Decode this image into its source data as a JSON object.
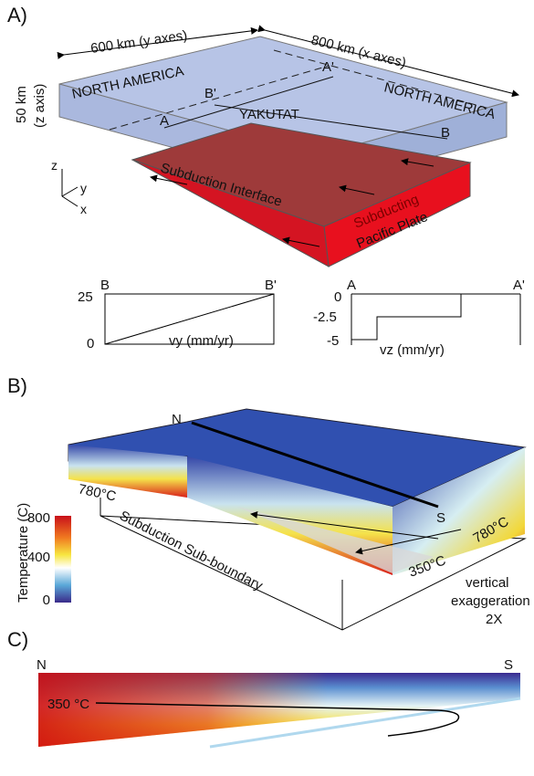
{
  "panel_a": {
    "label": "A)",
    "dim_y": "600 km (y axes)",
    "dim_x": "800 km (x axes)",
    "dim_z_1": "50 km",
    "dim_z_2": "(z axis)",
    "region_left": "NORTH AMERICA",
    "region_right": "NORTH AMERICA",
    "region_center": "YAKUTAT",
    "interface": "Subduction Interface",
    "plate_1": "Subducting",
    "plate_2": "Pacific Plate",
    "point_a": "A",
    "point_a2": "A'",
    "point_b": "B",
    "point_b2": "B'",
    "axis_z": "z",
    "axis_y": "y",
    "axis_x": "x"
  },
  "profile_vy": {
    "start": "B",
    "end": "B'",
    "tick_top": "25",
    "tick_bottom": "0",
    "axis_label": "vy (mm/yr)"
  },
  "profile_vz": {
    "start": "A",
    "end": "A'",
    "tick_top": "0",
    "tick_mid": "-2.5",
    "tick_bottom": "-5",
    "axis_label": "vz (mm/yr)"
  },
  "panel_b": {
    "label": "B)",
    "north": "N",
    "south": "S",
    "temp_left": "780°C",
    "temp_right": "780°C",
    "temp_mid": "350°C",
    "boundary": "Subduction Sub-boundary",
    "colorbar_title": "Temperature (C)",
    "colorbar_ticks": [
      "800",
      "400",
      "0"
    ],
    "note_1": "vertical",
    "note_2": "exaggeration",
    "note_3": "2X"
  },
  "panel_c": {
    "label": "C)",
    "north": "N",
    "south": "S",
    "isotherm": "350 °C"
  }
}
